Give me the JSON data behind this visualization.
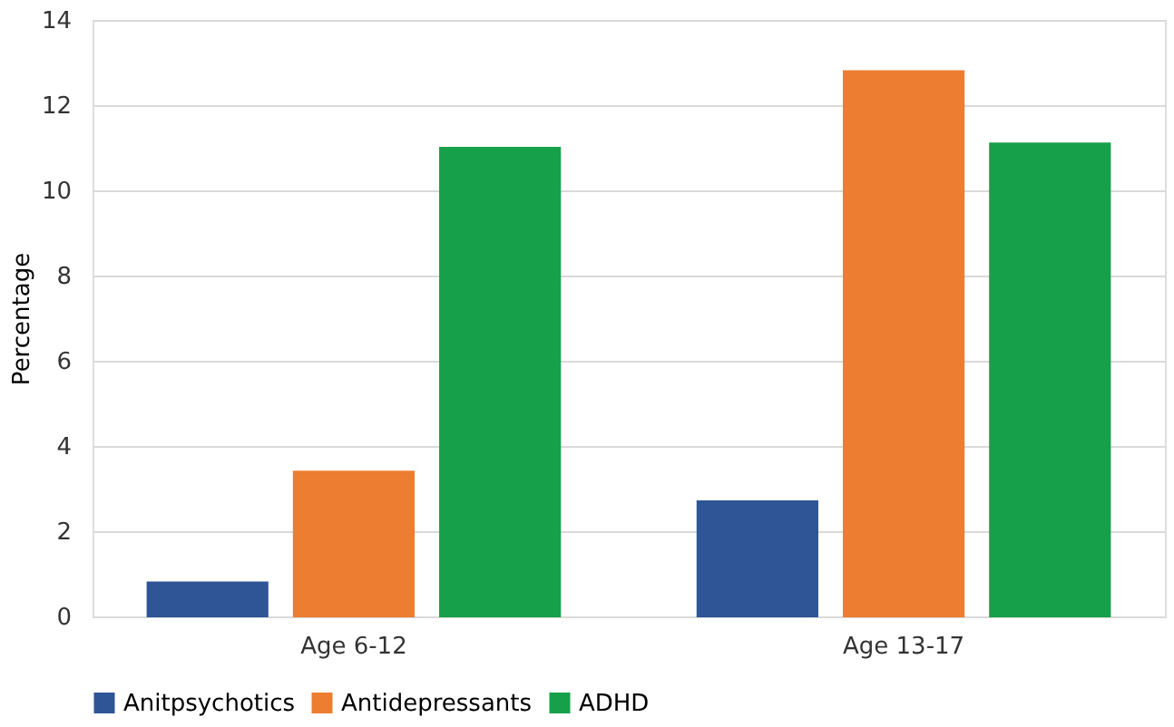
{
  "chart_data": {
    "type": "bar",
    "ylabel": "Percentage",
    "categories": [
      "Age 6-12",
      "Age 13-17"
    ],
    "series": [
      {
        "name": "Anitpsychotics",
        "color": "#2f5597",
        "values": [
          0.8,
          2.7
        ]
      },
      {
        "name": "Antidepressants",
        "color": "#ed7d31",
        "values": [
          3.4,
          12.8
        ]
      },
      {
        "name": "ADHD",
        "color": "#16a04a",
        "values": [
          11.0,
          11.1
        ]
      }
    ],
    "ylim": [
      0,
      14
    ],
    "yticks": [
      0,
      2,
      4,
      6,
      8,
      10,
      12,
      14
    ],
    "grid": "y",
    "legend": "bottom"
  }
}
